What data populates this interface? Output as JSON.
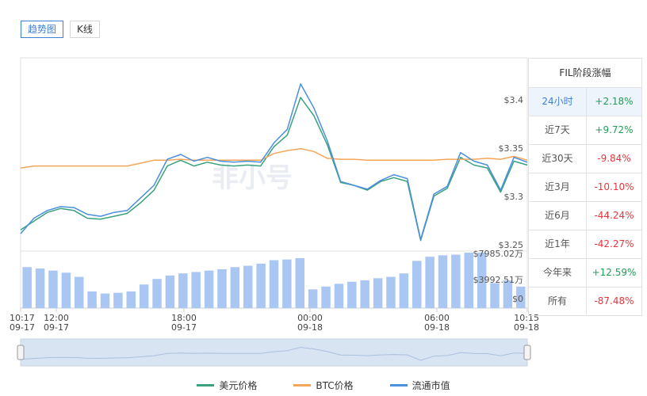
{
  "tabs": [
    {
      "label": "趋势图",
      "active": true
    },
    {
      "label": "K线",
      "active": false
    }
  ],
  "side_panel": {
    "title": "FIL阶段涨幅",
    "rows": [
      {
        "period": "24小时",
        "change": "+2.18%",
        "dir": "up",
        "active": true
      },
      {
        "period": "近7天",
        "change": "+9.72%",
        "dir": "up",
        "active": false
      },
      {
        "period": "近30天",
        "change": "-9.84%",
        "dir": "down",
        "active": false
      },
      {
        "period": "近3月",
        "change": "-10.10%",
        "dir": "down",
        "active": false
      },
      {
        "period": "近6月",
        "change": "-44.24%",
        "dir": "down",
        "active": false
      },
      {
        "period": "近1年",
        "change": "-42.27%",
        "dir": "down",
        "active": false
      },
      {
        "period": "今年来",
        "change": "+12.59%",
        "dir": "up",
        "active": false
      },
      {
        "period": "所有",
        "change": "-87.48%",
        "dir": "down",
        "active": false
      }
    ]
  },
  "watermark": "非小号",
  "colors": {
    "usd": "#3aa17e",
    "btc": "#f3a65a",
    "mcap": "#4a8fe0",
    "bars": "#a9c7f2",
    "up": "#1f9d55",
    "down": "#e5363d",
    "accent": "#3f7fd6"
  },
  "chart_data": {
    "type": "line",
    "x_range": [
      "09-17 10:17",
      "09-18 10:15"
    ],
    "x_tick_labels": [
      {
        "time": "10:17",
        "date": "09-17"
      },
      {
        "time": "12:00",
        "date": "09-17"
      },
      {
        "time": "18:00",
        "date": "09-17"
      },
      {
        "time": "00:00",
        "date": "09-18"
      },
      {
        "time": "06:00",
        "date": "09-18"
      },
      {
        "time": "10:15",
        "date": "09-18"
      }
    ],
    "y_ticks": [
      "$3.4",
      "$3.35",
      "$3.3",
      "$3.25"
    ],
    "ylim": [
      3.25,
      3.45
    ],
    "volume_ticks": [
      "$7985.02万",
      "$3992.51万",
      "$0"
    ],
    "volume_max": 7985.02,
    "series": [
      {
        "name": "美元价格",
        "values": [
          3.272,
          3.281,
          3.29,
          3.294,
          3.292,
          3.284,
          3.283,
          3.286,
          3.289,
          3.3,
          3.313,
          3.338,
          3.344,
          3.338,
          3.342,
          3.339,
          3.338,
          3.339,
          3.338,
          3.358,
          3.37,
          3.409,
          3.39,
          3.36,
          3.321,
          3.318,
          3.313,
          3.322,
          3.326,
          3.322,
          3.261,
          3.307,
          3.315,
          3.347,
          3.339,
          3.336,
          3.311,
          3.343,
          3.339
        ]
      },
      {
        "name": "BTC价格",
        "values": [
          3.336,
          3.338,
          3.338,
          3.338,
          3.338,
          3.338,
          3.338,
          3.338,
          3.338,
          3.341,
          3.344,
          3.344,
          3.345,
          3.344,
          3.344,
          3.344,
          3.344,
          3.344,
          3.344,
          3.351,
          3.354,
          3.356,
          3.353,
          3.346,
          3.345,
          3.345,
          3.344,
          3.344,
          3.344,
          3.344,
          3.344,
          3.344,
          3.345,
          3.345,
          3.345,
          3.346,
          3.345,
          3.348,
          3.344
        ]
      },
      {
        "name": "流通市值",
        "values": [
          3.268,
          3.284,
          3.292,
          3.296,
          3.295,
          3.288,
          3.286,
          3.29,
          3.292,
          3.305,
          3.318,
          3.345,
          3.35,
          3.343,
          3.347,
          3.343,
          3.342,
          3.343,
          3.342,
          3.362,
          3.376,
          3.423,
          3.398,
          3.364,
          3.322,
          3.318,
          3.314,
          3.323,
          3.329,
          3.325,
          3.262,
          3.309,
          3.317,
          3.352,
          3.343,
          3.339,
          3.313,
          3.347,
          3.342
        ]
      }
    ],
    "volume": [
      5900,
      5700,
      5400,
      5100,
      4500,
      2400,
      2100,
      2200,
      2400,
      3400,
      4200,
      4700,
      5000,
      5200,
      5400,
      5600,
      5900,
      6100,
      6400,
      6900,
      7000,
      7200,
      2700,
      3100,
      3500,
      3800,
      4000,
      4300,
      4500,
      5000,
      6800,
      7400,
      7600,
      7700,
      7985,
      7985,
      3600,
      4000,
      3100
    ],
    "navigator": {
      "start": 0,
      "end": 1
    }
  }
}
